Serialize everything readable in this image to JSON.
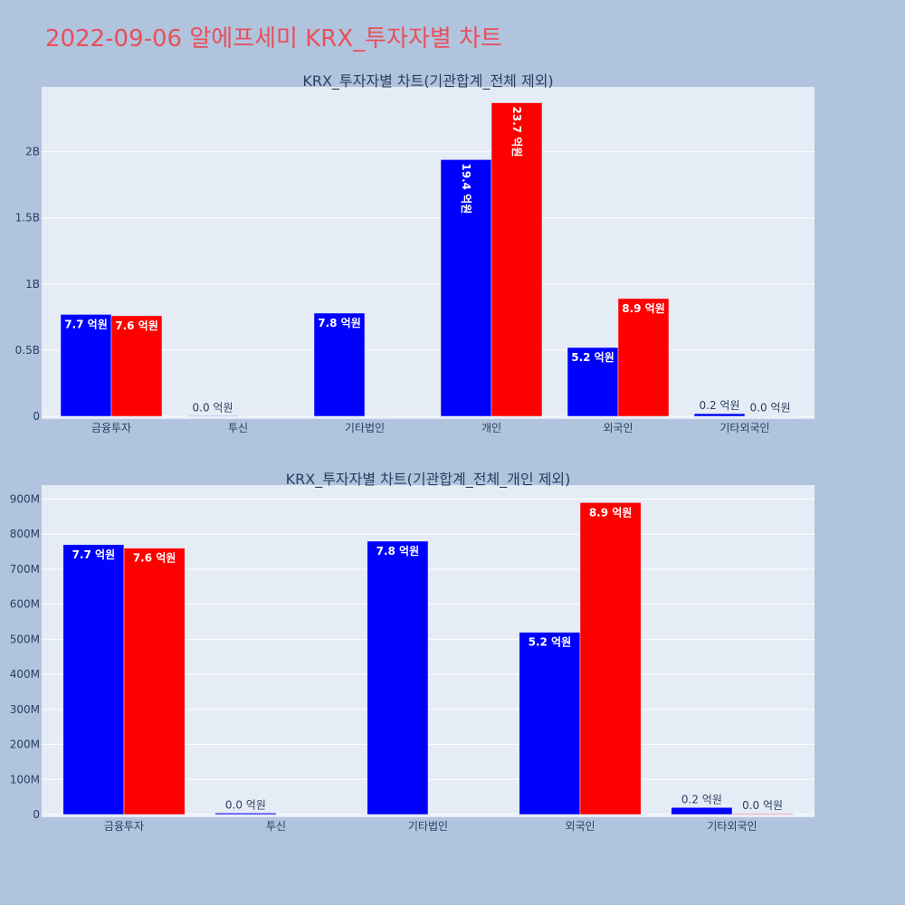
{
  "page": {
    "title": "2022-09-06 알에프세미 KRX_투자자별 차트"
  },
  "colors": {
    "background": "#b0c4de",
    "plot_bg": "#e5ecf6",
    "buy": "#0000ff",
    "sell": "#ff0000",
    "title": "#e8505b",
    "text": "#2a3f5f"
  },
  "chart_data": [
    {
      "type": "bar",
      "title": "KRX_투자자별 차트(기관합계_전체 제외)",
      "categories": [
        "금융투자",
        "투신",
        "기타법인",
        "개인",
        "외국인",
        "기타외국인"
      ],
      "series": [
        {
          "values": [
            770000000,
            4000000,
            780000000,
            1940000000,
            520000000,
            20000000
          ],
          "labels": [
            "7.7 억원",
            "0.0 억원",
            "7.8 억원",
            "19.4 억원",
            "5.2 억원",
            "0.2 억원"
          ]
        },
        {
          "values": [
            760000000,
            0,
            0,
            2370000000,
            890000000,
            2000000
          ],
          "labels": [
            "7.6 억원",
            "",
            "",
            "23.7 억원",
            "8.9 억원",
            "0.0 억원"
          ]
        }
      ],
      "y_ticks": [
        0,
        500000000,
        1000000000,
        1500000000,
        2000000000
      ],
      "y_tick_labels": [
        "0",
        "0.5B",
        "1B",
        "1.5B",
        "2B"
      ],
      "ylim": [
        0,
        2490000000
      ],
      "grid": true,
      "legend": "none"
    },
    {
      "type": "bar",
      "title": "KRX_투자자별 차트(기관합계_전체_개인 제외)",
      "categories": [
        "금융투자",
        "투신",
        "기타법인",
        "외국인",
        "기타외국인"
      ],
      "series": [
        {
          "values": [
            770000000,
            4000000,
            780000000,
            520000000,
            20000000
          ],
          "labels": [
            "7.7 억원",
            "0.0 억원",
            "7.8 억원",
            "5.2 억원",
            "0.2 억원"
          ]
        },
        {
          "values": [
            760000000,
            0,
            0,
            890000000,
            2000000
          ],
          "labels": [
            "7.6 억원",
            "",
            "",
            "8.9 억원",
            "0.0 억원"
          ]
        }
      ],
      "y_ticks": [
        0,
        100000000,
        200000000,
        300000000,
        400000000,
        500000000,
        600000000,
        700000000,
        800000000,
        900000000
      ],
      "y_tick_labels": [
        "0",
        "100M",
        "200M",
        "300M",
        "400M",
        "500M",
        "600M",
        "700M",
        "800M",
        "900M"
      ],
      "ylim": [
        0,
        940000000
      ],
      "grid": true,
      "legend": "none"
    }
  ]
}
